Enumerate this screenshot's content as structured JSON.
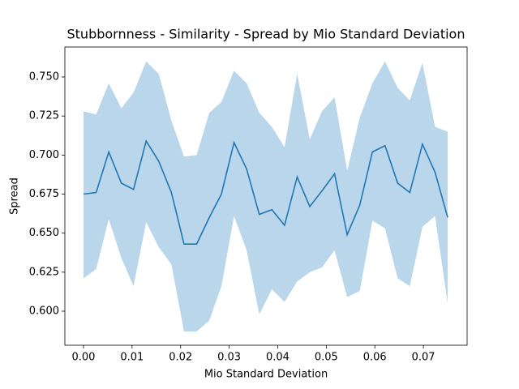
{
  "chart_data": {
    "type": "line",
    "title": "Stubbornness - Similarity - Spread by Mio Standard Deviation",
    "x_label": "Mio Standard Deviation",
    "y_label": "Spread",
    "x": [
      0,
      0.0026,
      0.0052,
      0.0078,
      0.0103,
      0.0129,
      0.0155,
      0.0181,
      0.0207,
      0.0233,
      0.0259,
      0.0284,
      0.031,
      0.0336,
      0.0362,
      0.0388,
      0.0414,
      0.044,
      0.0466,
      0.0491,
      0.0517,
      0.0543,
      0.0569,
      0.0595,
      0.0621,
      0.0647,
      0.0672,
      0.0698,
      0.0724,
      0.075
    ],
    "values": [
      0.675,
      0.676,
      0.702,
      0.682,
      0.678,
      0.709,
      0.696,
      0.676,
      0.643,
      0.643,
      0.66,
      0.675,
      0.708,
      0.691,
      0.662,
      0.665,
      0.655,
      0.686,
      0.667,
      0.677,
      0.688,
      0.649,
      0.668,
      0.702,
      0.706,
      0.682,
      0.676,
      0.707,
      0.689,
      0.66
    ],
    "upper": [
      0.728,
      0.726,
      0.746,
      0.73,
      0.74,
      0.76,
      0.752,
      0.722,
      0.699,
      0.7,
      0.727,
      0.734,
      0.754,
      0.746,
      0.727,
      0.718,
      0.705,
      0.752,
      0.71,
      0.728,
      0.737,
      0.69,
      0.724,
      0.746,
      0.76,
      0.743,
      0.735,
      0.759,
      0.718,
      0.715
    ],
    "lower": [
      0.621,
      0.627,
      0.659,
      0.634,
      0.616,
      0.657,
      0.641,
      0.63,
      0.587,
      0.587,
      0.594,
      0.616,
      0.661,
      0.639,
      0.598,
      0.614,
      0.606,
      0.619,
      0.625,
      0.628,
      0.639,
      0.609,
      0.613,
      0.658,
      0.653,
      0.621,
      0.616,
      0.654,
      0.661,
      0.605
    ],
    "color": "#1f77b4",
    "band_color": "#bad6ea",
    "xlim": [
      -0.00384,
      0.079
    ],
    "ylim": [
      0.5782,
      0.7692
    ],
    "xticks": [
      {
        "value": 0,
        "label": "0.00"
      },
      {
        "value": 0.01,
        "label": "0.01"
      },
      {
        "value": 0.02,
        "label": "0.02"
      },
      {
        "value": 0.03,
        "label": "0.03"
      },
      {
        "value": 0.04,
        "label": "0.04"
      },
      {
        "value": 0.05,
        "label": "0.05"
      },
      {
        "value": 0.06,
        "label": "0.06"
      },
      {
        "value": 0.07,
        "label": "0.07"
      }
    ],
    "yticks": [
      {
        "value": 0.6,
        "label": "0.600"
      },
      {
        "value": 0.625,
        "label": "0.625"
      },
      {
        "value": 0.65,
        "label": "0.650"
      },
      {
        "value": 0.675,
        "label": "0.675"
      },
      {
        "value": 0.7,
        "label": "0.700"
      },
      {
        "value": 0.725,
        "label": "0.725"
      },
      {
        "value": 0.75,
        "label": "0.750"
      }
    ]
  }
}
